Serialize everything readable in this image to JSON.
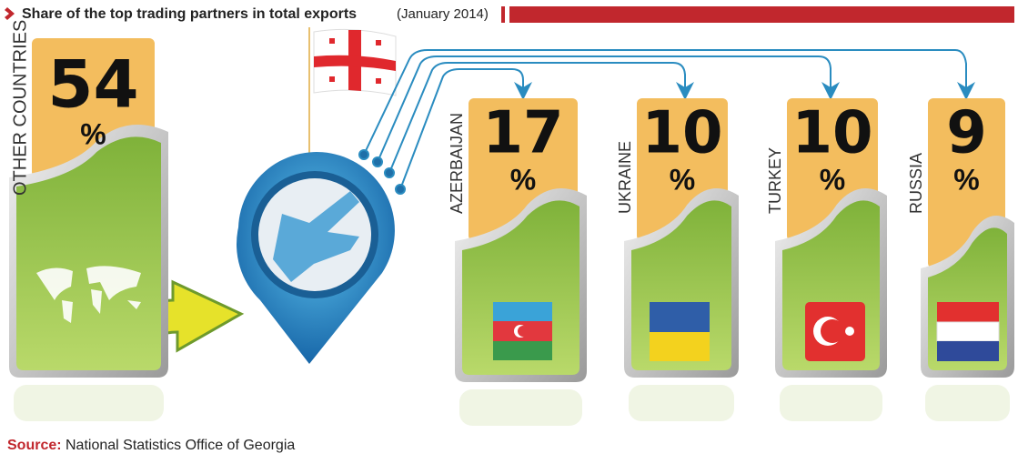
{
  "chart_data": {
    "type": "infographic",
    "title": "Share of the top trading partners in total exports",
    "subtitle": "(January 2014)",
    "unit": "%",
    "categories": [
      "OTHER COUNTRIES",
      "AZERBAIJAN",
      "UKRAINE",
      "TURKEY",
      "RUSSIA"
    ],
    "values": [
      54,
      17,
      10,
      10,
      9
    ],
    "source_label": "Source:",
    "source": "National Statistics Office of Georgia"
  }
}
